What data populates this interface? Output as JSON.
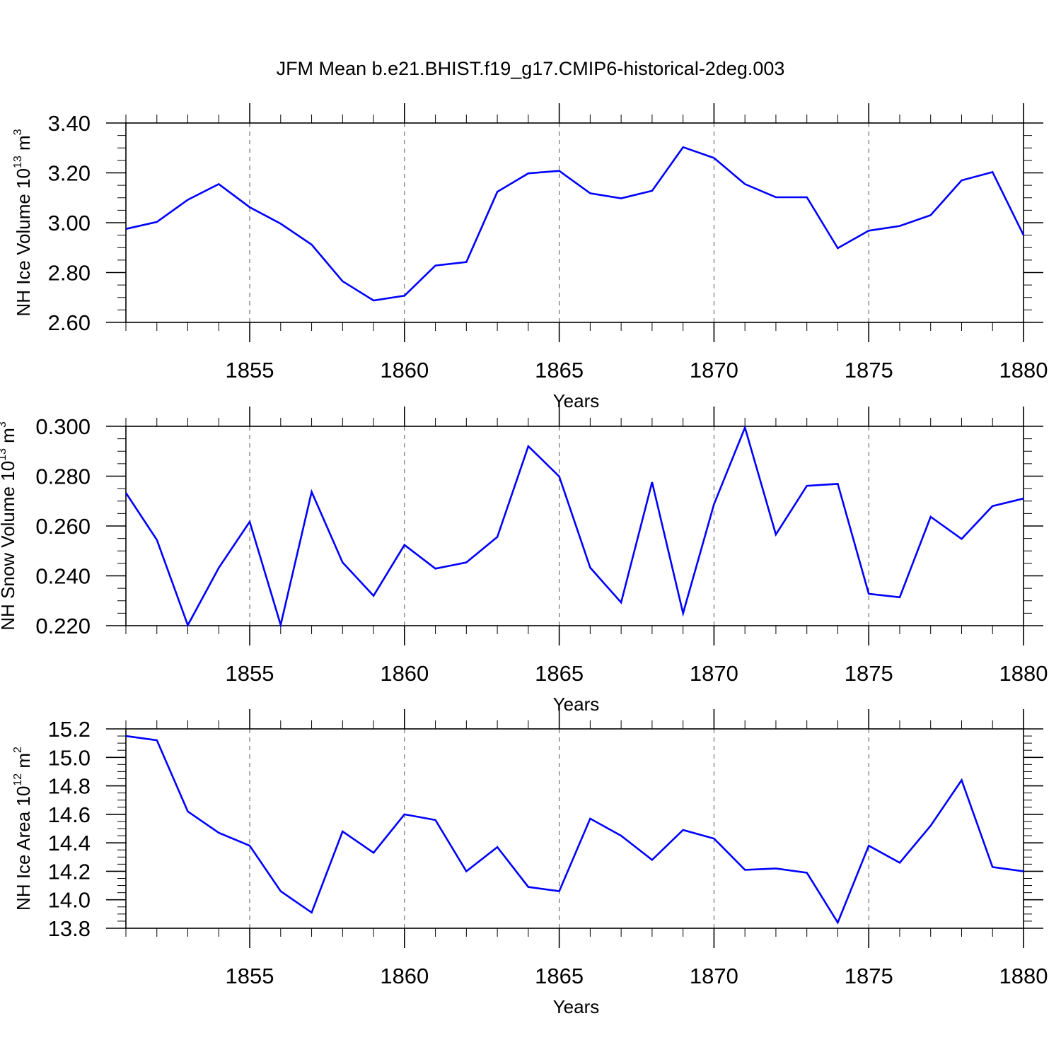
{
  "figure": {
    "title": "JFM Mean b.e21.BHIST.f19_g17.CMIP6-historical-2deg.003",
    "line_color": "#0000ff"
  },
  "chart_data": [
    {
      "type": "line",
      "title": "",
      "xlabel": "Years",
      "ylabel": "NH Ice Volume 10",
      "ylabel_sup": "13",
      "ylabel_unit": " m",
      "ylabel_unit_sup": "3",
      "xlim": [
        1851,
        1880
      ],
      "ylim": [
        2.6,
        3.4
      ],
      "grid": "dashed vertical lines at labeled x ticks",
      "x_ticks": [
        1855,
        1860,
        1865,
        1870,
        1875,
        1880
      ],
      "x_tick_labels": [
        "1855",
        "1860",
        "1865",
        "1870",
        "1875",
        "1880"
      ],
      "y_ticks": [
        2.6,
        2.8,
        3.0,
        3.2,
        3.4
      ],
      "y_tick_labels": [
        "2.60",
        "2.80",
        "3.00",
        "3.20",
        "3.40"
      ],
      "y_minor_step": 0.05,
      "x": [
        1851,
        1852,
        1853,
        1854,
        1855,
        1856,
        1857,
        1858,
        1859,
        1860,
        1861,
        1862,
        1863,
        1864,
        1865,
        1866,
        1867,
        1868,
        1869,
        1870,
        1871,
        1872,
        1873,
        1874,
        1875,
        1876,
        1877,
        1878,
        1879,
        1880
      ],
      "series": [
        {
          "values": [
            2.975,
            3.003,
            3.092,
            3.155,
            3.062,
            2.996,
            2.912,
            2.765,
            2.688,
            2.707,
            2.828,
            2.842,
            3.124,
            3.198,
            3.208,
            3.118,
            3.098,
            3.128,
            3.303,
            3.26,
            3.155,
            3.102,
            3.102,
            2.898,
            2.968,
            2.987,
            3.03,
            3.17,
            3.203,
            2.95
          ]
        }
      ]
    },
    {
      "type": "line",
      "title": "",
      "xlabel": "Years",
      "ylabel": "NH Snow Volume 10",
      "ylabel_sup": "13",
      "ylabel_unit": " m",
      "ylabel_unit_sup": "3",
      "xlim": [
        1851,
        1880
      ],
      "ylim": [
        0.22,
        0.3
      ],
      "grid": "dashed vertical lines at labeled x ticks",
      "x_ticks": [
        1855,
        1860,
        1865,
        1870,
        1875,
        1880
      ],
      "x_tick_labels": [
        "1855",
        "1860",
        "1865",
        "1870",
        "1875",
        "1880"
      ],
      "y_ticks": [
        0.22,
        0.24,
        0.26,
        0.28,
        0.3
      ],
      "y_tick_labels": [
        "0.220",
        "0.240",
        "0.260",
        "0.280",
        "0.300"
      ],
      "y_minor_step": 0.005,
      "x": [
        1851,
        1852,
        1853,
        1854,
        1855,
        1856,
        1857,
        1858,
        1859,
        1860,
        1861,
        1862,
        1863,
        1864,
        1865,
        1866,
        1867,
        1868,
        1869,
        1870,
        1871,
        1872,
        1873,
        1874,
        1875,
        1876,
        1877,
        1878,
        1879,
        1880
      ],
      "series": [
        {
          "values": [
            0.2733,
            0.2544,
            0.2202,
            0.2432,
            0.2617,
            0.2203,
            0.2737,
            0.2454,
            0.232,
            0.2524,
            0.2429,
            0.2454,
            0.2556,
            0.292,
            0.2799,
            0.2433,
            0.2293,
            0.2776,
            0.225,
            0.2687,
            0.2995,
            0.2566,
            0.2761,
            0.2769,
            0.2328,
            0.2314,
            0.2637,
            0.2548,
            0.268,
            0.271
          ]
        }
      ]
    },
    {
      "type": "line",
      "title": "",
      "xlabel": "Years",
      "ylabel": "NH Ice Area 10",
      "ylabel_sup": "12",
      "ylabel_unit": " m",
      "ylabel_unit_sup": "2",
      "xlim": [
        1851,
        1880
      ],
      "ylim": [
        13.8,
        15.2
      ],
      "grid": "dashed vertical lines at labeled x ticks",
      "x_ticks": [
        1855,
        1860,
        1865,
        1870,
        1875,
        1880
      ],
      "x_tick_labels": [
        "1855",
        "1860",
        "1865",
        "1870",
        "1875",
        "1880"
      ],
      "y_ticks": [
        13.8,
        14.0,
        14.2,
        14.4,
        14.6,
        14.8,
        15.0,
        15.2
      ],
      "y_tick_labels": [
        "13.8",
        "14.0",
        "14.2",
        "14.4",
        "14.6",
        "14.8",
        "15.0",
        "15.2"
      ],
      "y_minor_step": 0.05,
      "x": [
        1851,
        1852,
        1853,
        1854,
        1855,
        1856,
        1857,
        1858,
        1859,
        1860,
        1861,
        1862,
        1863,
        1864,
        1865,
        1866,
        1867,
        1868,
        1869,
        1870,
        1871,
        1872,
        1873,
        1874,
        1875,
        1876,
        1877,
        1878,
        1879,
        1880
      ],
      "series": [
        {
          "values": [
            15.15,
            15.12,
            14.62,
            14.47,
            14.38,
            14.06,
            13.91,
            14.48,
            14.33,
            14.6,
            14.56,
            14.2,
            14.37,
            14.09,
            14.06,
            14.57,
            14.45,
            14.28,
            14.49,
            14.43,
            14.21,
            14.22,
            14.19,
            13.84,
            14.38,
            14.26,
            14.52,
            14.84,
            14.23,
            14.2
          ]
        }
      ]
    }
  ]
}
